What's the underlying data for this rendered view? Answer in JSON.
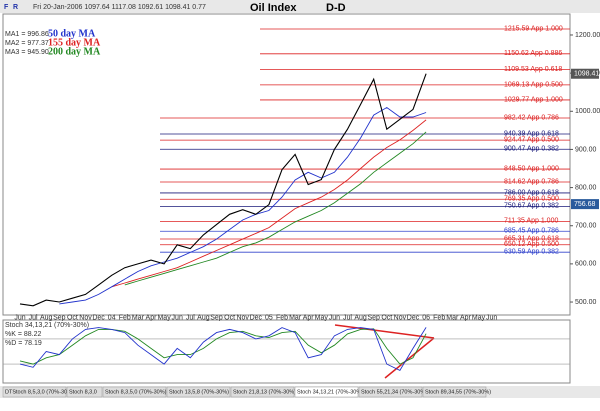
{
  "toolbar": [
    "F",
    "R"
  ],
  "tabs": [
    "DTStoch 8,5,3,0 (70%-30%)",
    "Stoch 8,3,0",
    "Stoch 8,3,5,0 (70%-30%)",
    "Stoch 13,5,8 (70%-30%)",
    "Stoch 21,8,13 (70%-30%)",
    "Stoch 34,13,21 (70%-30%)",
    "Stoch 55,21,34 (70%-30%)",
    "Stoch 89,34,55 (70%-30%)"
  ],
  "chart_data": [
    {
      "type": "line",
      "title": "Oil Index",
      "subtitle": "D-D",
      "quote": "Fri 20-Jan-2006  1097.64  1117.08  1092.61  1098.41  0.77",
      "categories": [
        "Jun",
        "Jul",
        "Aug",
        "Sep",
        "Oct",
        "Nov",
        "Dec",
        "04",
        "Feb",
        "Mar",
        "Apr",
        "May",
        "Jun",
        "Jul",
        "Aug",
        "Sep",
        "Oct",
        "Nov",
        "Dec",
        "05",
        "Feb",
        "Mar",
        "Apr",
        "May",
        "Jun",
        "Jul",
        "Aug",
        "Sep",
        "Oct",
        "Nov",
        "Dec",
        "06",
        "Feb",
        "Mar",
        "Apr",
        "May",
        "Jun"
      ],
      "series": [
        {
          "color": "#000000",
          "values": [
            495,
            490,
            505,
            500,
            510,
            520,
            545,
            570,
            590,
            600,
            610,
            600,
            650,
            640,
            676,
            703,
            730,
            742,
            730,
            755,
            847,
            887,
            808,
            821,
            900,
            953,
            1018,
            1084,
            953,
            979,
            1005,
            1098.41,
            null,
            null,
            null,
            null,
            null
          ]
        },
        {
          "name": "50 day MA",
          "readout": "MA1 = 996.86",
          "color": "#2233cc",
          "values": [
            null,
            null,
            null,
            495,
            500,
            505,
            520,
            540,
            560,
            580,
            595,
            605,
            615,
            630,
            645,
            665,
            690,
            715,
            730,
            740,
            775,
            820,
            840,
            825,
            840,
            880,
            930,
            990,
            1010,
            985,
            985,
            996.86,
            null,
            null,
            null,
            null,
            null
          ]
        },
        {
          "name": "155 day MA",
          "readout": "MA2 = 977.37",
          "color": "#dd2222",
          "values": [
            null,
            null,
            null,
            null,
            null,
            null,
            null,
            540,
            550,
            560,
            570,
            580,
            590,
            605,
            620,
            635,
            650,
            665,
            680,
            695,
            720,
            745,
            760,
            775,
            795,
            820,
            850,
            880,
            905,
            925,
            950,
            977.37,
            null,
            null,
            null,
            null,
            null
          ]
        },
        {
          "name": "200 day MA",
          "readout": "MA3 = 945.90",
          "color": "#228822",
          "values": [
            null,
            null,
            null,
            null,
            null,
            null,
            null,
            null,
            545,
            555,
            565,
            575,
            585,
            595,
            605,
            615,
            630,
            645,
            655,
            670,
            690,
            710,
            725,
            740,
            760,
            785,
            810,
            840,
            865,
            890,
            915,
            945.9,
            null,
            null,
            null,
            null,
            null
          ]
        }
      ],
      "levels": [
        {
          "value": 1215.59,
          "label": "1215.59 App 1.000",
          "color": "#dd2222"
        },
        {
          "value": 1150.62,
          "label": "1150.62 App 0.886",
          "color": "#dd2222"
        },
        {
          "value": 1109.53,
          "label": "1109.53 App 0.618",
          "color": "#dd2222"
        },
        {
          "value": 1069.13,
          "label": "1069.13 App 0.500",
          "color": "#dd2222"
        },
        {
          "value": 1029.77,
          "label": "1029.77 App 1.000",
          "color": "#dd2222"
        },
        {
          "value": 982.42,
          "label": "982.42 App 0.786",
          "color": "#dd2222"
        },
        {
          "value": 940.39,
          "label": "940.39 App 0.618",
          "color": "#1a1a7a"
        },
        {
          "value": 924.47,
          "label": "924.47 App 0.500",
          "color": "#dd2222"
        },
        {
          "value": 900.47,
          "label": "900.47 App 0.382",
          "color": "#1a1a7a"
        },
        {
          "value": 848.5,
          "label": "848.50 App 1.000",
          "color": "#dd2222"
        },
        {
          "value": 814.62,
          "label": "814.62 App 0.786",
          "color": "#dd2222"
        },
        {
          "value": 786,
          "label": "786.00 App 0.618",
          "color": "#1a1a7a"
        },
        {
          "value": 769.35,
          "label": "769.35 App 0.500",
          "color": "#dd2222"
        },
        {
          "value": 750.67,
          "label": "750.67 App 0.382",
          "color": "#1a1a7a"
        },
        {
          "value": 711.35,
          "label": "711.35 App 1.000",
          "color": "#dd2222"
        },
        {
          "value": 685.45,
          "label": "685.45 App 0.786",
          "color": "#3344cc"
        },
        {
          "value": 665.31,
          "label": "665.31 App 0.618",
          "color": "#dd2222"
        },
        {
          "value": 650.12,
          "label": "650.12 App 0.500",
          "color": "#dd2222"
        },
        {
          "value": 630.59,
          "label": "630.59 App 0.382",
          "color": "#3344cc"
        }
      ],
      "price_tags": [
        1098.41,
        756.68
      ],
      "price_tag_colors": [
        "#555555",
        "#2a5a9c"
      ],
      "ylim": [
        466,
        1255
      ],
      "yticks": [
        {
          "value": 500,
          "label": "500.00"
        },
        {
          "value": 600,
          "label": "600.00"
        },
        {
          "value": 700,
          "label": "700.00"
        },
        {
          "value": 800,
          "label": "800.00"
        },
        {
          "value": 900,
          "label": "900.00"
        },
        {
          "value": 1000,
          "label": "1000.00"
        },
        {
          "value": 1100,
          "label": "1100.00"
        },
        {
          "value": 1200,
          "label": "1200.00"
        }
      ]
    },
    {
      "type": "line",
      "title": "Stoch 34,13,21 (70%-30%)",
      "series": [
        {
          "name": "%K",
          "readout": "%K = 88.22",
          "color": "#2233cc",
          "values": [
            30,
            25,
            50,
            45,
            70,
            85,
            88,
            85,
            80,
            60,
            45,
            30,
            55,
            40,
            65,
            80,
            85,
            80,
            70,
            75,
            88,
            80,
            40,
            45,
            75,
            85,
            88,
            85,
            30,
            20,
            55,
            88.22,
            null,
            null,
            null,
            null,
            null
          ]
        },
        {
          "name": "%D",
          "readout": "%D = 78.19",
          "color": "#228822",
          "values": [
            35,
            30,
            40,
            45,
            60,
            75,
            85,
            85,
            82,
            70,
            55,
            40,
            45,
            45,
            55,
            70,
            80,
            82,
            75,
            72,
            80,
            82,
            60,
            48,
            60,
            78,
            85,
            86,
            55,
            30,
            40,
            78.19,
            null,
            null,
            null,
            null,
            null
          ]
        }
      ],
      "levels": [
        70,
        30
      ],
      "ylim": [
        0,
        100
      ]
    }
  ]
}
